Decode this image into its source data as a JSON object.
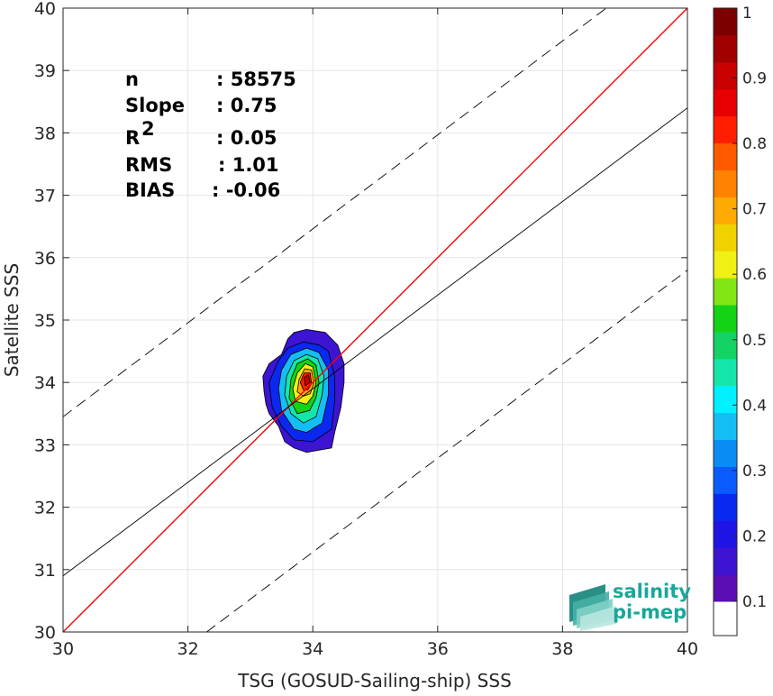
{
  "chart_data": {
    "type": "heatmap",
    "subtype": "density-contour-scatter",
    "xlabel": "TSG (GOSUD-Sailing-ship) SSS",
    "ylabel": "Satellite SSS",
    "xlim": [
      30,
      40
    ],
    "ylim": [
      30,
      40
    ],
    "x_ticks": [
      30,
      32,
      34,
      36,
      38,
      40
    ],
    "y_ticks": [
      30,
      31,
      32,
      33,
      34,
      35,
      36,
      37,
      38,
      39,
      40
    ],
    "grid": true,
    "stats": [
      {
        "label": "n",
        "value": ": 58575"
      },
      {
        "label": "Slope",
        "value": ": 0.75"
      },
      {
        "label": "R",
        "sup": "2",
        "value": ": 0.05"
      },
      {
        "label": "RMS",
        "value": ": 1.01"
      },
      {
        "label": "BIAS",
        "value": ": -0.06"
      }
    ],
    "lines": [
      {
        "kind": "one-to-one",
        "color": "#ff0000",
        "style": "solid",
        "slope": 1,
        "intercept": 0
      },
      {
        "kind": "regression",
        "color": "#000000",
        "style": "solid",
        "points": [
          [
            30,
            30.9
          ],
          [
            40,
            38.4
          ]
        ]
      },
      {
        "kind": "upper-bound",
        "color": "#000000",
        "style": "dashed",
        "points": [
          [
            30,
            33.45
          ],
          [
            38.7,
            40
          ]
        ]
      },
      {
        "kind": "lower-bound",
        "color": "#000000",
        "style": "dashed",
        "points": [
          [
            32.3,
            30
          ],
          [
            40,
            35.8
          ]
        ]
      }
    ],
    "density": {
      "center": [
        33.92,
        34.1
      ],
      "levels": [
        0.05,
        0.15,
        0.25,
        0.35,
        0.45,
        0.55,
        0.65,
        0.75,
        0.85
      ],
      "contours": [
        [
          [
            34.35,
            33.2
          ],
          [
            34.3,
            32.95
          ],
          [
            33.9,
            32.88
          ],
          [
            33.7,
            32.95
          ],
          [
            33.55,
            33.05
          ],
          [
            33.45,
            33.3
          ],
          [
            33.3,
            33.5
          ],
          [
            33.25,
            33.65
          ],
          [
            33.22,
            33.85
          ],
          [
            33.2,
            34.1
          ],
          [
            33.3,
            34.3
          ],
          [
            33.5,
            34.45
          ],
          [
            33.6,
            34.7
          ],
          [
            33.7,
            34.8
          ],
          [
            33.9,
            34.85
          ],
          [
            34.2,
            34.8
          ],
          [
            34.4,
            34.6
          ],
          [
            34.5,
            34.3
          ],
          [
            34.5,
            34.0
          ],
          [
            34.45,
            33.6
          ]
        ],
        [
          [
            34.3,
            33.25
          ],
          [
            34.0,
            33.05
          ],
          [
            33.7,
            33.08
          ],
          [
            33.5,
            33.3
          ],
          [
            33.35,
            33.6
          ],
          [
            33.3,
            34.0
          ],
          [
            33.45,
            34.35
          ],
          [
            33.6,
            34.55
          ],
          [
            33.85,
            34.65
          ],
          [
            34.1,
            34.6
          ],
          [
            34.25,
            34.5
          ],
          [
            34.35,
            34.1
          ],
          [
            34.35,
            33.7
          ]
        ],
        [
          [
            34.15,
            33.35
          ],
          [
            33.9,
            33.2
          ],
          [
            33.7,
            33.25
          ],
          [
            33.5,
            33.55
          ],
          [
            33.45,
            33.9
          ],
          [
            33.5,
            34.2
          ],
          [
            33.65,
            34.45
          ],
          [
            33.9,
            34.55
          ],
          [
            34.1,
            34.48
          ],
          [
            34.25,
            34.2
          ],
          [
            34.25,
            33.8
          ]
        ],
        [
          [
            34.05,
            33.45
          ],
          [
            33.85,
            33.35
          ],
          [
            33.65,
            33.5
          ],
          [
            33.55,
            33.8
          ],
          [
            33.58,
            34.1
          ],
          [
            33.7,
            34.35
          ],
          [
            33.9,
            34.45
          ],
          [
            34.08,
            34.38
          ],
          [
            34.18,
            34.1
          ],
          [
            34.15,
            33.8
          ]
        ],
        [
          [
            33.95,
            33.55
          ],
          [
            33.75,
            33.5
          ],
          [
            33.62,
            33.75
          ],
          [
            33.65,
            34.05
          ],
          [
            33.75,
            34.3
          ],
          [
            33.92,
            34.38
          ],
          [
            34.05,
            34.28
          ],
          [
            34.1,
            34.0
          ],
          [
            34.05,
            33.75
          ]
        ],
        [
          [
            33.9,
            33.65
          ],
          [
            33.72,
            33.7
          ],
          [
            33.68,
            33.9
          ],
          [
            33.75,
            34.15
          ],
          [
            33.88,
            34.3
          ],
          [
            34.0,
            34.25
          ],
          [
            34.05,
            34.0
          ],
          [
            34.0,
            33.78
          ]
        ],
        [
          [
            33.85,
            33.78
          ],
          [
            33.75,
            33.85
          ],
          [
            33.78,
            34.05
          ],
          [
            33.87,
            34.22
          ],
          [
            33.98,
            34.2
          ],
          [
            34.02,
            34.0
          ],
          [
            33.96,
            33.82
          ]
        ],
        [
          [
            33.85,
            33.88
          ],
          [
            33.8,
            34.0
          ],
          [
            33.86,
            34.15
          ],
          [
            33.96,
            34.15
          ],
          [
            33.98,
            33.98
          ],
          [
            33.92,
            33.88
          ]
        ],
        [
          [
            33.88,
            33.95
          ],
          [
            33.86,
            34.08
          ],
          [
            33.93,
            34.12
          ],
          [
            33.96,
            34.0
          ]
        ]
      ]
    },
    "colorbar": {
      "ticks": [
        "0.1",
        "0.2",
        "0.3",
        "0.4",
        "0.5",
        "0.6",
        "0.7",
        "0.8",
        "0.9",
        "1"
      ],
      "tick_values": [
        0.1,
        0.2,
        0.3,
        0.4,
        0.5,
        0.6,
        0.7,
        0.8,
        0.9,
        1.0
      ],
      "bottom_color": "#ffffff",
      "colors": [
        "#5a0fb4",
        "#3c14d2",
        "#1e14e6",
        "#0a28f0",
        "#0a5aff",
        "#0a8cf5",
        "#14bef5",
        "#00f0ff",
        "#14e6aa",
        "#14d264",
        "#14d214",
        "#82e614",
        "#f0f014",
        "#f0d200",
        "#ffaa00",
        "#ff8200",
        "#ff5a00",
        "#ff1e00",
        "#e60000",
        "#c80000",
        "#a00000",
        "#7d0000"
      ]
    }
  },
  "logo": {
    "line1": "salinity",
    "line2": "pi-mep",
    "color": "#1aa69a"
  }
}
